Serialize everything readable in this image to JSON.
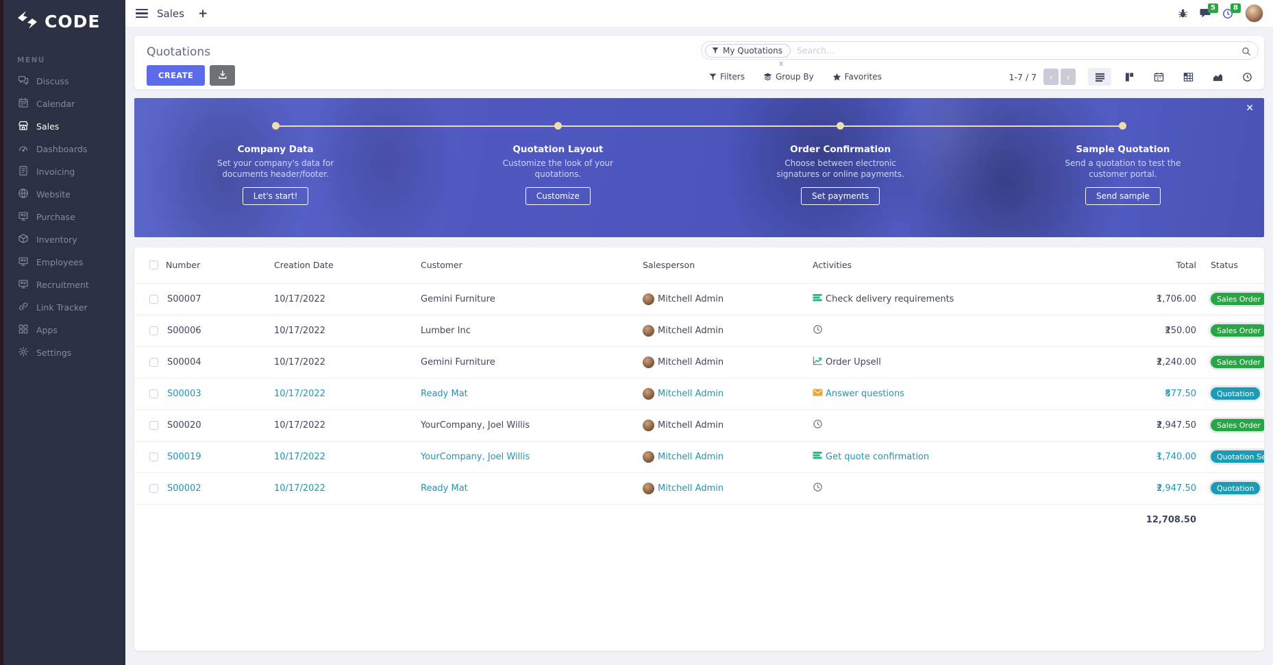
{
  "colors": {
    "accent": "#5c6ce8",
    "sidebar_bg": "#2b3042",
    "teal": "#2095b3",
    "badge_green": "#2aa546",
    "badge_teal": "#1b9cb4",
    "banner_overlay": "#4f5bc2",
    "step_accent": "#eeddb2",
    "count_badge_green": "#2aa745"
  },
  "sidebar": {
    "logo_text": "CODE",
    "menu_label": "MENU",
    "items": [
      {
        "label": "Discuss",
        "icon": "chat-icon",
        "active": false
      },
      {
        "label": "Calendar",
        "icon": "calendar-icon",
        "active": false
      },
      {
        "label": "Sales",
        "icon": "storefront-icon",
        "active": true
      },
      {
        "label": "Dashboards",
        "icon": "gauge-icon",
        "active": false
      },
      {
        "label": "Invoicing",
        "icon": "invoice-icon",
        "active": false
      },
      {
        "label": "Website",
        "icon": "globe-icon",
        "active": false
      },
      {
        "label": "Purchase",
        "icon": "monitor-icon",
        "active": false
      },
      {
        "label": "Inventory",
        "icon": "box-icon",
        "active": false
      },
      {
        "label": "Employees",
        "icon": "monitor-icon",
        "active": false
      },
      {
        "label": "Recruitment",
        "icon": "monitor-icon",
        "active": false
      },
      {
        "label": "Link Tracker",
        "icon": "link-icon",
        "active": false
      },
      {
        "label": "Apps",
        "icon": "grid-icon",
        "active": false
      },
      {
        "label": "Settings",
        "icon": "gear-icon",
        "active": false
      }
    ]
  },
  "topbar": {
    "breadcrumb": "Sales",
    "new_tab_label": "+",
    "messages_count": "5",
    "activities_count": "8"
  },
  "header": {
    "title": "Quotations",
    "create_label": "CREATE",
    "search": {
      "facet": "My Quotations",
      "facet_remove": "x",
      "placeholder": "Search..."
    },
    "controls": {
      "filters": "Filters",
      "group_by": "Group By",
      "favorites": "Favorites"
    },
    "pager": "1-7 / 7",
    "pager_prev": "‹",
    "pager_next": "›",
    "views": [
      "list",
      "kanban",
      "calendar",
      "pivot",
      "graph",
      "activity"
    ],
    "active_view": "list"
  },
  "banner": {
    "close": "✕",
    "steps": [
      {
        "title": "Company Data",
        "desc": "Set your company's data for documents header/footer.",
        "button": "Let's start!"
      },
      {
        "title": "Quotation Layout",
        "desc": "Customize the look of your quotations.",
        "button": "Customize"
      },
      {
        "title": "Order Confirmation",
        "desc": "Choose between electronic signatures or online payments.",
        "button": "Set payments"
      },
      {
        "title": "Sample Quotation",
        "desc": "Send a quotation to test the customer portal.",
        "button": "Send sample"
      }
    ]
  },
  "table": {
    "columns": [
      "Number",
      "Creation Date",
      "Customer",
      "Salesperson",
      "Activities",
      "Total",
      "Status"
    ],
    "currency": "₹",
    "rows": [
      {
        "number": "S00007",
        "date": "10/17/2022",
        "customer": "Gemini Furniture",
        "salesperson": "Mitchell Admin",
        "activity": {
          "icon": "tasks-icon",
          "label": "Check delivery requirements"
        },
        "total": "1,706.00",
        "status": {
          "label": "Sales Order",
          "color": "green"
        },
        "accent": "dark"
      },
      {
        "number": "S00006",
        "date": "10/17/2022",
        "customer": "Lumber Inc",
        "salesperson": "Mitchell Admin",
        "activity": {
          "icon": "clock-icon",
          "label": ""
        },
        "total": "250.00",
        "status": {
          "label": "Sales Order",
          "color": "green"
        },
        "accent": "dark"
      },
      {
        "number": "S00004",
        "date": "10/17/2022",
        "customer": "Gemini Furniture",
        "salesperson": "Mitchell Admin",
        "activity": {
          "icon": "chart-up-icon",
          "label": "Order Upsell"
        },
        "total": "2,240.00",
        "status": {
          "label": "Sales Order",
          "color": "green"
        },
        "accent": "dark"
      },
      {
        "number": "S00003",
        "date": "10/17/2022",
        "customer": "Ready Mat",
        "salesperson": "Mitchell Admin",
        "activity": {
          "icon": "envelope-icon",
          "label": "Answer questions"
        },
        "total": "877.50",
        "status": {
          "label": "Quotation",
          "color": "teal"
        },
        "accent": "teal"
      },
      {
        "number": "S00020",
        "date": "10/17/2022",
        "customer": "YourCompany, Joel Willis",
        "salesperson": "Mitchell Admin",
        "activity": {
          "icon": "clock-icon",
          "label": ""
        },
        "total": "2,947.50",
        "status": {
          "label": "Sales Order",
          "color": "green"
        },
        "accent": "dark"
      },
      {
        "number": "S00019",
        "date": "10/17/2022",
        "customer": "YourCompany, Joel Willis",
        "salesperson": "Mitchell Admin",
        "activity": {
          "icon": "tasks-icon",
          "label": "Get quote confirmation"
        },
        "total": "1,740.00",
        "status": {
          "label": "Quotation Sent",
          "color": "teal"
        },
        "accent": "teal"
      },
      {
        "number": "S00002",
        "date": "10/17/2022",
        "customer": "Ready Mat",
        "salesperson": "Mitchell Admin",
        "activity": {
          "icon": "clock-icon",
          "label": ""
        },
        "total": "2,947.50",
        "status": {
          "label": "Quotation",
          "color": "teal"
        },
        "accent": "teal"
      }
    ],
    "footer_total": "12,708.50"
  }
}
